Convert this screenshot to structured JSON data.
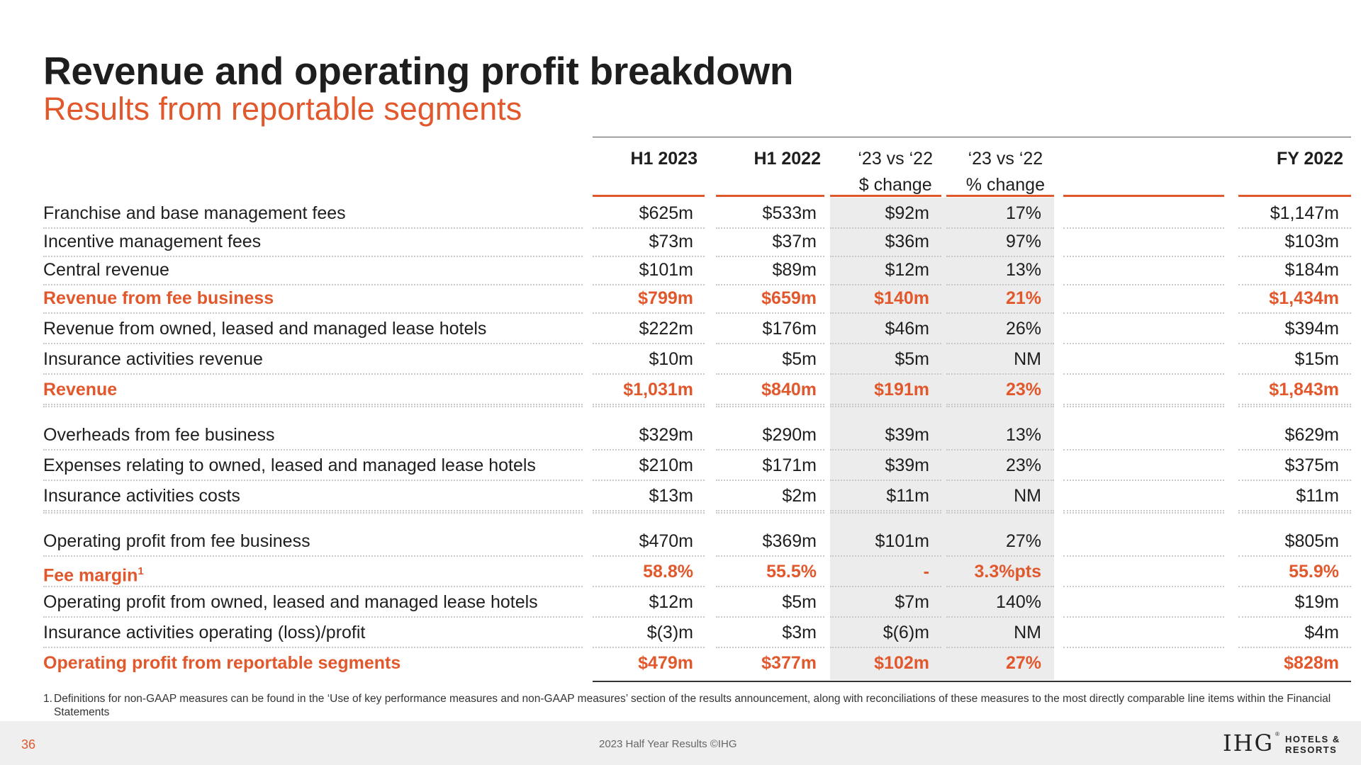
{
  "header": {
    "title": "Revenue and operating profit breakdown",
    "subtitle": "Results from reportable segments"
  },
  "columns": [
    {
      "line1": "H1 2023",
      "line2": ""
    },
    {
      "line1": "H1 2022",
      "line2": ""
    },
    {
      "line1": "‘23 vs ‘22",
      "line2": "$ change"
    },
    {
      "line1": "‘23 vs ‘22",
      "line2": "% change"
    },
    {
      "line1": "",
      "line2": ""
    },
    {
      "line1": "FY 2022",
      "line2": ""
    }
  ],
  "rows": [
    {
      "label": "Franchise and base management fees",
      "values": [
        "$625m",
        "$533m",
        "$92m",
        "17%",
        "",
        "$1,147m"
      ],
      "highlight": false
    },
    {
      "label": "Incentive management fees",
      "values": [
        "$73m",
        "$37m",
        "$36m",
        "97%",
        "",
        "$103m"
      ],
      "highlight": false
    },
    {
      "label": "Central revenue",
      "values": [
        "$101m",
        "$89m",
        "$12m",
        "13%",
        "",
        "$184m"
      ],
      "highlight": false
    },
    {
      "label": "Revenue from fee business",
      "values": [
        "$799m",
        "$659m",
        "$140m",
        "21%",
        "",
        "$1,434m"
      ],
      "highlight": true
    },
    {
      "label": "Revenue from owned, leased and managed lease hotels",
      "values": [
        "$222m",
        "$176m",
        "$46m",
        "26%",
        "",
        "$394m"
      ],
      "highlight": false
    },
    {
      "label": "Insurance activities revenue",
      "values": [
        "$10m",
        "$5m",
        "$5m",
        "NM",
        "",
        "$15m"
      ],
      "highlight": false
    },
    {
      "label": "Revenue",
      "values": [
        "$1,031m",
        "$840m",
        "$191m",
        "23%",
        "",
        "$1,843m"
      ],
      "highlight": true
    },
    {
      "label": "Overheads from fee business",
      "values": [
        "$329m",
        "$290m",
        "$39m",
        "13%",
        "",
        "$629m"
      ],
      "highlight": false
    },
    {
      "label": "Expenses relating to owned, leased and managed lease hotels",
      "values": [
        "$210m",
        "$171m",
        "$39m",
        "23%",
        "",
        "$375m"
      ],
      "highlight": false
    },
    {
      "label": "Insurance activities costs",
      "values": [
        "$13m",
        "$2m",
        "$11m",
        "NM",
        "",
        "$11m"
      ],
      "highlight": false
    },
    {
      "label": "Operating profit from fee business",
      "values": [
        "$470m",
        "$369m",
        "$101m",
        "27%",
        "",
        "$805m"
      ],
      "highlight": false
    },
    {
      "label": "Fee margin",
      "sup": "1",
      "values": [
        "58.8%",
        "55.5%",
        "-",
        "3.3%pts",
        "",
        "55.9%"
      ],
      "highlight": true
    },
    {
      "label": "Operating profit from owned, leased and managed lease hotels",
      "values": [
        "$12m",
        "$5m",
        "$7m",
        "140%",
        "",
        "$19m"
      ],
      "highlight": false
    },
    {
      "label": "Insurance activities operating (loss)/profit",
      "values": [
        "$(3)m",
        "$3m",
        "$(6)m",
        "NM",
        "",
        "$4m"
      ],
      "highlight": false
    },
    {
      "label": "Operating profit from reportable segments",
      "values": [
        "$479m",
        "$377m",
        "$102m",
        "27%",
        "",
        "$828m"
      ],
      "highlight": true
    }
  ],
  "footnote": {
    "number": "1.",
    "text": "Definitions for non-GAAP measures can be found in the ‘Use of key performance measures and non-GAAP measures’ section of the results announcement, along with reconciliations of these measures to the most directly comparable line items within the Financial Statements"
  },
  "footer": {
    "page_number": "36",
    "text": "2023 Half Year Results ©IHG",
    "logo_mark": "IHG",
    "logo_reg": "®",
    "logo_line1": "HOTELS &",
    "logo_line2": "RESORTS"
  },
  "colors": {
    "accent": "#e2582d",
    "text": "#1e1e1e",
    "shade": "#ececec",
    "footer_bg": "#efefef"
  }
}
